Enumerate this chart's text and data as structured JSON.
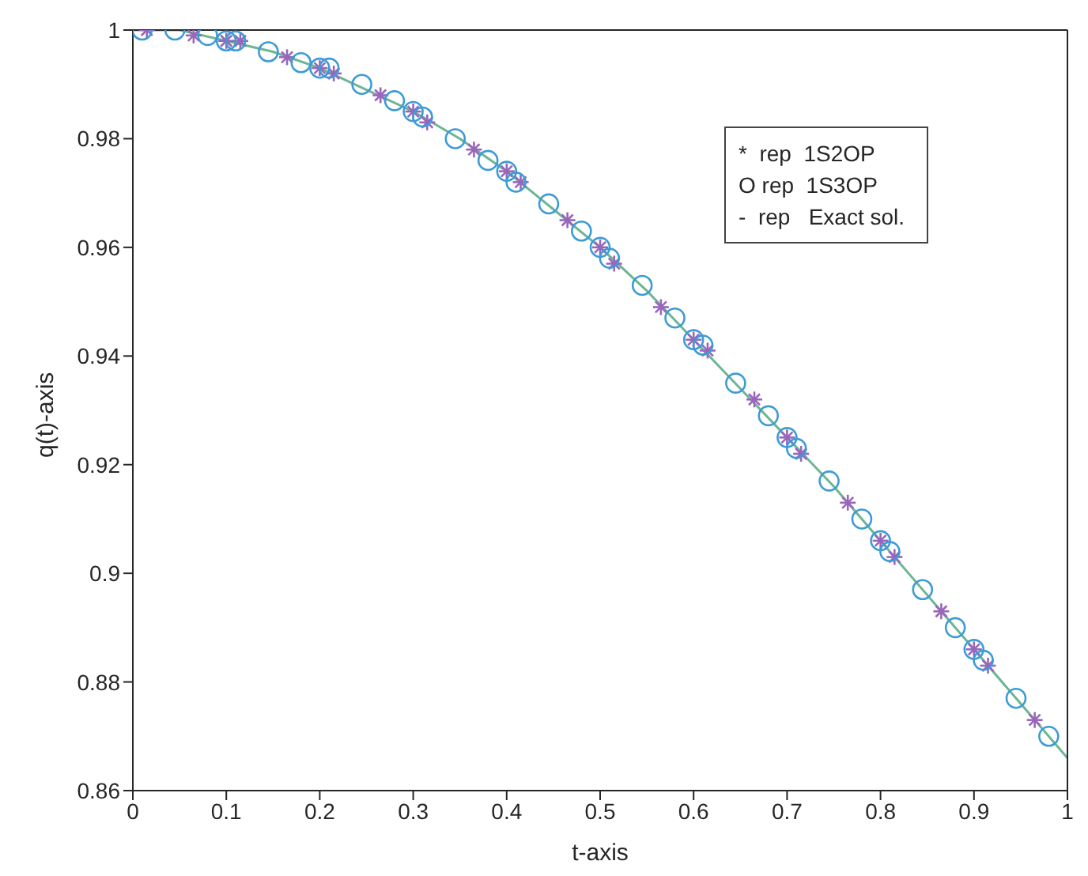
{
  "chart_data": {
    "type": "scatter",
    "xlabel": "t-axis",
    "ylabel": "q(t)-axis",
    "xlim": [
      0,
      1
    ],
    "xticks": [
      0,
      0.1,
      0.2,
      0.3,
      0.4,
      0.5,
      0.6,
      0.7,
      0.8,
      0.9,
      1
    ],
    "ylim": [
      0.86,
      1
    ],
    "yticks": [
      0.86,
      0.88,
      0.9,
      0.92,
      0.94,
      0.96,
      0.98,
      1
    ],
    "annotations": [
      "*  rep  1S2OP",
      "O rep  1S3OP",
      "-  rep   Exact sol."
    ],
    "series": [
      {
        "type": "line",
        "color": "#6db594",
        "marker": "none",
        "line_style": "solid",
        "x": [
          0,
          0.05,
          0.1,
          0.15,
          0.2,
          0.25,
          0.3,
          0.35,
          0.4,
          0.45,
          0.5,
          0.55,
          0.6,
          0.65,
          0.7,
          0.75,
          0.8,
          0.85,
          0.9,
          0.95,
          1
        ],
        "values": [
          1.0,
          1.0,
          0.998,
          0.996,
          0.993,
          0.989,
          0.985,
          0.98,
          0.974,
          0.967,
          0.96,
          0.952,
          0.943,
          0.934,
          0.925,
          0.916,
          0.906,
          0.896,
          0.886,
          0.876,
          0.866
        ]
      },
      {
        "color": "#9966bb",
        "marker": "cross",
        "x": [
          0.015,
          0.065,
          0.1,
          0.115,
          0.165,
          0.2,
          0.215,
          0.265,
          0.3,
          0.315,
          0.365,
          0.4,
          0.415,
          0.465,
          0.5,
          0.515,
          0.565,
          0.6,
          0.615,
          0.665,
          0.7,
          0.715,
          0.765,
          0.8,
          0.815,
          0.865,
          0.9,
          0.915,
          0.965
        ],
        "values": [
          1.0,
          0.999,
          0.998,
          0.998,
          0.995,
          0.993,
          0.992,
          0.988,
          0.985,
          0.983,
          0.978,
          0.974,
          0.972,
          0.965,
          0.96,
          0.957,
          0.949,
          0.943,
          0.941,
          0.932,
          0.925,
          0.922,
          0.913,
          0.906,
          0.903,
          0.893,
          0.886,
          0.883,
          0.873
        ]
      },
      {
        "color": "#3d9bd6",
        "marker": "circle",
        "x": [
          0.01,
          0.045,
          0.08,
          0.1,
          0.11,
          0.145,
          0.18,
          0.2,
          0.21,
          0.245,
          0.28,
          0.3,
          0.31,
          0.345,
          0.38,
          0.4,
          0.41,
          0.445,
          0.48,
          0.5,
          0.51,
          0.545,
          0.58,
          0.6,
          0.61,
          0.645,
          0.68,
          0.7,
          0.71,
          0.745,
          0.78,
          0.8,
          0.81,
          0.845,
          0.88,
          0.9,
          0.91,
          0.945,
          0.98
        ],
        "values": [
          1.0,
          1.0,
          0.999,
          0.998,
          0.998,
          0.996,
          0.994,
          0.993,
          0.993,
          0.99,
          0.987,
          0.985,
          0.984,
          0.98,
          0.976,
          0.974,
          0.972,
          0.968,
          0.963,
          0.96,
          0.958,
          0.953,
          0.947,
          0.943,
          0.942,
          0.935,
          0.929,
          0.925,
          0.923,
          0.917,
          0.91,
          0.906,
          0.904,
          0.897,
          0.89,
          0.886,
          0.884,
          0.877,
          0.87
        ]
      }
    ]
  }
}
